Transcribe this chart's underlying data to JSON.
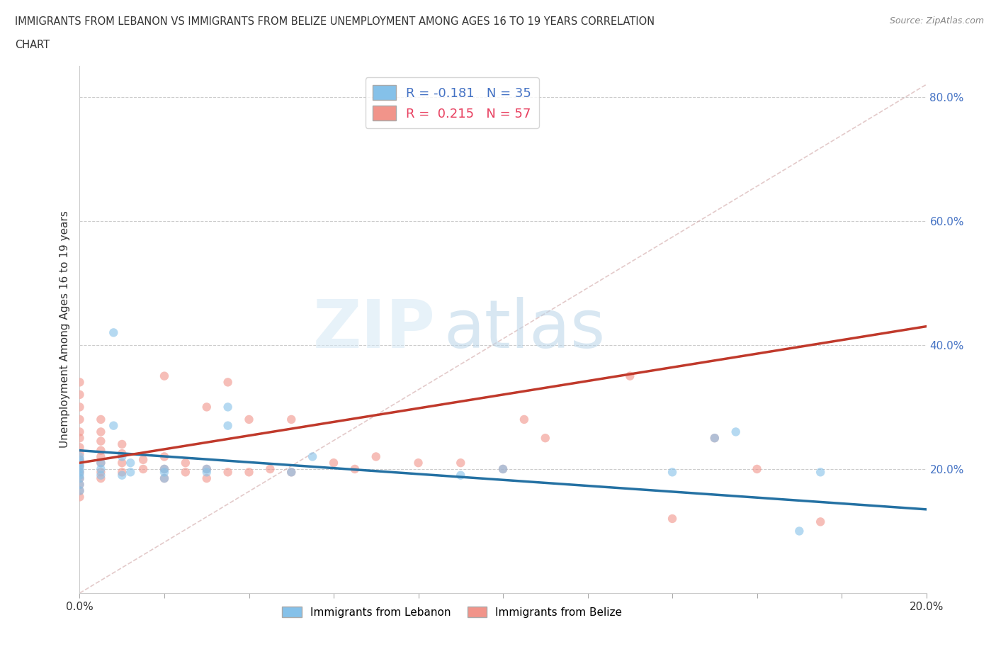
{
  "title_line1": "IMMIGRANTS FROM LEBANON VS IMMIGRANTS FROM BELIZE UNEMPLOYMENT AMONG AGES 16 TO 19 YEARS CORRELATION",
  "title_line2": "CHART",
  "source": "Source: ZipAtlas.com",
  "ylabel": "Unemployment Among Ages 16 to 19 years",
  "color_lebanon": "#85C1E9",
  "color_belize": "#F1948A",
  "color_line_lebanon": "#2471A3",
  "color_line_belize": "#C0392B",
  "color_diagonal": "#D5DBDB",
  "xlim": [
    0.0,
    0.2
  ],
  "ylim": [
    0.0,
    0.85
  ],
  "lebanon_x": [
    0.0,
    0.0,
    0.0,
    0.0,
    0.0,
    0.0,
    0.0,
    0.0,
    0.0,
    0.0,
    0.005,
    0.005,
    0.005,
    0.008,
    0.008,
    0.01,
    0.01,
    0.012,
    0.012,
    0.02,
    0.02,
    0.02,
    0.03,
    0.03,
    0.035,
    0.035,
    0.05,
    0.055,
    0.09,
    0.1,
    0.14,
    0.15,
    0.155,
    0.17,
    0.175
  ],
  "lebanon_y": [
    0.165,
    0.175,
    0.185,
    0.19,
    0.195,
    0.2,
    0.205,
    0.21,
    0.215,
    0.22,
    0.19,
    0.2,
    0.21,
    0.27,
    0.42,
    0.19,
    0.22,
    0.195,
    0.21,
    0.185,
    0.195,
    0.2,
    0.195,
    0.2,
    0.27,
    0.3,
    0.195,
    0.22,
    0.19,
    0.2,
    0.195,
    0.25,
    0.26,
    0.1,
    0.195
  ],
  "belize_x": [
    0.0,
    0.0,
    0.0,
    0.0,
    0.0,
    0.0,
    0.0,
    0.0,
    0.0,
    0.0,
    0.0,
    0.0,
    0.0,
    0.0,
    0.0,
    0.005,
    0.005,
    0.005,
    0.005,
    0.005,
    0.005,
    0.005,
    0.005,
    0.01,
    0.01,
    0.01,
    0.01,
    0.015,
    0.015,
    0.02,
    0.02,
    0.02,
    0.02,
    0.025,
    0.025,
    0.03,
    0.03,
    0.03,
    0.035,
    0.035,
    0.04,
    0.04,
    0.045,
    0.05,
    0.05,
    0.06,
    0.065,
    0.07,
    0.08,
    0.09,
    0.1,
    0.105,
    0.11,
    0.13,
    0.14,
    0.15,
    0.16,
    0.175
  ],
  "belize_y": [
    0.155,
    0.165,
    0.175,
    0.185,
    0.195,
    0.205,
    0.215,
    0.225,
    0.235,
    0.25,
    0.26,
    0.28,
    0.3,
    0.32,
    0.34,
    0.185,
    0.195,
    0.21,
    0.22,
    0.23,
    0.245,
    0.26,
    0.28,
    0.195,
    0.21,
    0.225,
    0.24,
    0.2,
    0.215,
    0.185,
    0.2,
    0.22,
    0.35,
    0.195,
    0.21,
    0.185,
    0.2,
    0.3,
    0.195,
    0.34,
    0.195,
    0.28,
    0.2,
    0.195,
    0.28,
    0.21,
    0.2,
    0.22,
    0.21,
    0.21,
    0.2,
    0.28,
    0.25,
    0.35,
    0.12,
    0.25,
    0.2,
    0.115
  ]
}
